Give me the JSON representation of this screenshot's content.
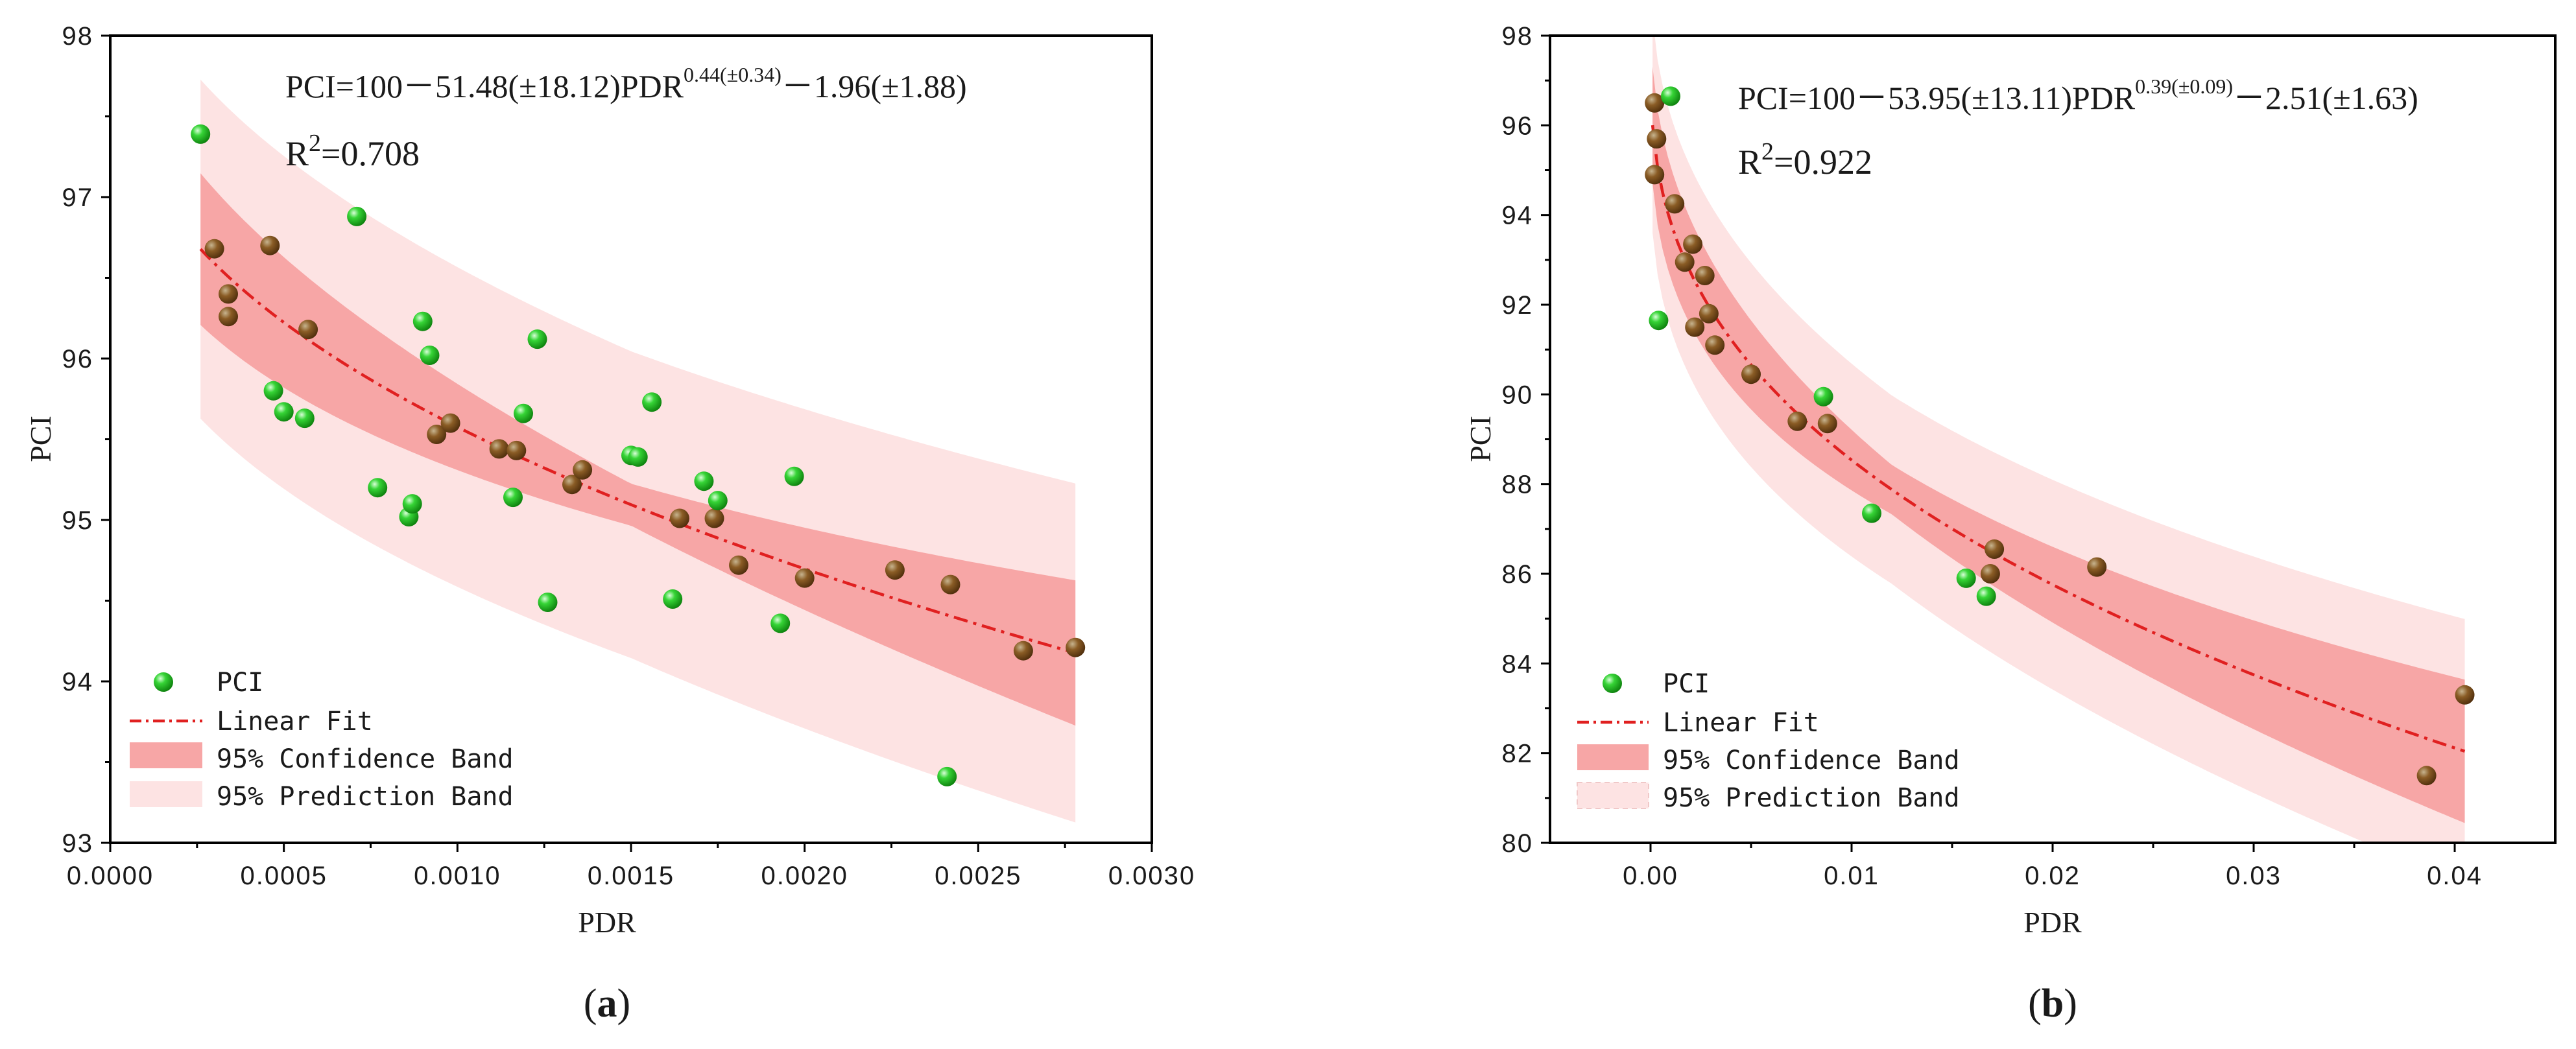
{
  "figure": {
    "panels": [
      {
        "id": "a",
        "label_letter": "a",
        "equation_main": "PCI=100－51.48(±18.12)PDR",
        "equation_exp": "0.44(±0.34)",
        "equation_tail": "－1.96(±1.88)",
        "r2_prefix": "R",
        "r2_sup": "2",
        "r2_value": "=0.708",
        "legend": {
          "points": "PCI",
          "fit": "Linear Fit",
          "confidence": "95% Confidence Band",
          "prediction": "95% Prediction Band"
        }
      },
      {
        "id": "b",
        "label_letter": "b",
        "equation_main": "PCI=100－53.95(±13.11)PDR",
        "equation_exp": "0.39(±0.09)",
        "equation_tail": "－2.51(±1.63)",
        "r2_prefix": "R",
        "r2_sup": "2",
        "r2_value": "=0.922",
        "legend": {
          "points": "PCI",
          "fit": "Linear Fit",
          "confidence": "95% Confidence Band",
          "prediction": "95% Prediction Band"
        }
      }
    ]
  },
  "colors": {
    "point_fill": "#22cc22",
    "point_dark": "#7a4a1a",
    "fit_line": "#e02020",
    "confidence_band": "#f7a6a6",
    "prediction_band": "#fde3e3",
    "axis": "#000000"
  },
  "chart_data": [
    {
      "type": "scatter",
      "xlabel": "PDR",
      "ylabel": "PCI",
      "xlim": [
        0.0,
        0.003
      ],
      "ylim": [
        93,
        98
      ],
      "x_ticks": [
        "0.0000",
        "0.0005",
        "0.0010",
        "0.0015",
        "0.0020",
        "0.0025",
        "0.0030"
      ],
      "y_ticks": [
        "93",
        "94",
        "95",
        "96",
        "97",
        "98"
      ],
      "legend_position": "bottom-left",
      "fit": {
        "a": 100,
        "b": 51.48,
        "c": 0.44,
        "d": 1.96,
        "x_range": [
          0.00026,
          0.00278
        ]
      },
      "bands": {
        "confidence": {
          "x": [
            0.00026,
            0.0015,
            0.00278
          ],
          "half_width": [
            0.47,
            0.13,
            0.45
          ]
        },
        "prediction": {
          "x": [
            0.00026,
            0.0015,
            0.00278
          ],
          "half_width": [
            1.05,
            0.95,
            1.05
          ]
        }
      },
      "series": [
        {
          "name": "PCI",
          "points": [
            [
              0.00026,
              97.39
            ],
            [
              0.0003,
              96.68
            ],
            [
              0.00034,
              96.4
            ],
            [
              0.00034,
              96.26
            ],
            [
              0.00046,
              96.7
            ],
            [
              0.00047,
              95.8
            ],
            [
              0.0005,
              95.67
            ],
            [
              0.00056,
              95.63
            ],
            [
              0.00057,
              96.18
            ],
            [
              0.00071,
              96.88
            ],
            [
              0.00077,
              95.2
            ],
            [
              0.00086,
              95.02
            ],
            [
              0.00087,
              95.1
            ],
            [
              0.0009,
              96.23
            ],
            [
              0.00092,
              96.02
            ],
            [
              0.00094,
              95.53
            ],
            [
              0.00098,
              95.6
            ],
            [
              0.00112,
              95.44
            ],
            [
              0.00116,
              95.14
            ],
            [
              0.00117,
              95.43
            ],
            [
              0.00119,
              95.66
            ],
            [
              0.00123,
              96.12
            ],
            [
              0.00126,
              94.49
            ],
            [
              0.00133,
              95.22
            ],
            [
              0.00136,
              95.31
            ],
            [
              0.0015,
              95.4
            ],
            [
              0.00152,
              95.39
            ],
            [
              0.00156,
              95.73
            ],
            [
              0.00162,
              94.51
            ],
            [
              0.00164,
              95.01
            ],
            [
              0.00171,
              95.24
            ],
            [
              0.00174,
              95.01
            ],
            [
              0.00175,
              95.12
            ],
            [
              0.00181,
              94.72
            ],
            [
              0.00193,
              94.36
            ],
            [
              0.00197,
              95.27
            ],
            [
              0.002,
              94.64
            ],
            [
              0.00226,
              94.69
            ],
            [
              0.00241,
              93.41
            ],
            [
              0.00242,
              94.6
            ],
            [
              0.00263,
              94.19
            ],
            [
              0.00278,
              94.21
            ]
          ]
        }
      ]
    },
    {
      "type": "scatter",
      "xlabel": "PDR",
      "ylabel": "PCI",
      "xlim": [
        -0.005,
        0.045
      ],
      "ylim": [
        80,
        98
      ],
      "x_ticks": [
        "0.00",
        "0.01",
        "0.02",
        "0.03",
        "0.04"
      ],
      "x_tick_values": [
        0,
        0.01,
        0.02,
        0.03,
        0.04
      ],
      "y_ticks": [
        "80",
        "82",
        "84",
        "86",
        "88",
        "90",
        "92",
        "94",
        "96",
        "98"
      ],
      "legend_position": "bottom-left",
      "fit": {
        "a": 100,
        "b": 53.95,
        "c": 0.39,
        "d": 2.51,
        "x_range": [
          0.0001,
          0.0405
        ]
      },
      "bands": {
        "confidence": {
          "x": [
            0.0001,
            0.012,
            0.0405
          ],
          "half_width": [
            1.3,
            0.55,
            1.6
          ]
        },
        "prediction": {
          "x": [
            0.0001,
            0.012,
            0.0405
          ],
          "half_width": [
            2.4,
            2.1,
            2.95
          ]
        }
      },
      "series": [
        {
          "name": "PCI",
          "points": [
            [
              0.0002,
              96.5
            ],
            [
              0.0003,
              95.7
            ],
            [
              0.0002,
              94.9
            ],
            [
              0.0004,
              91.65
            ],
            [
              0.001,
              96.65
            ],
            [
              0.0012,
              94.25
            ],
            [
              0.0017,
              92.95
            ],
            [
              0.0021,
              93.35
            ],
            [
              0.0022,
              91.5
            ],
            [
              0.0027,
              92.65
            ],
            [
              0.0029,
              91.8
            ],
            [
              0.0032,
              91.1
            ],
            [
              0.005,
              90.45
            ],
            [
              0.0073,
              89.4
            ],
            [
              0.0086,
              89.95
            ],
            [
              0.0088,
              89.35
            ],
            [
              0.011,
              87.35
            ],
            [
              0.0157,
              85.9
            ],
            [
              0.0167,
              85.5
            ],
            [
              0.0169,
              86.0
            ],
            [
              0.0171,
              86.55
            ],
            [
              0.0222,
              86.15
            ],
            [
              0.0386,
              81.5
            ],
            [
              0.0405,
              83.3
            ]
          ]
        }
      ]
    }
  ]
}
